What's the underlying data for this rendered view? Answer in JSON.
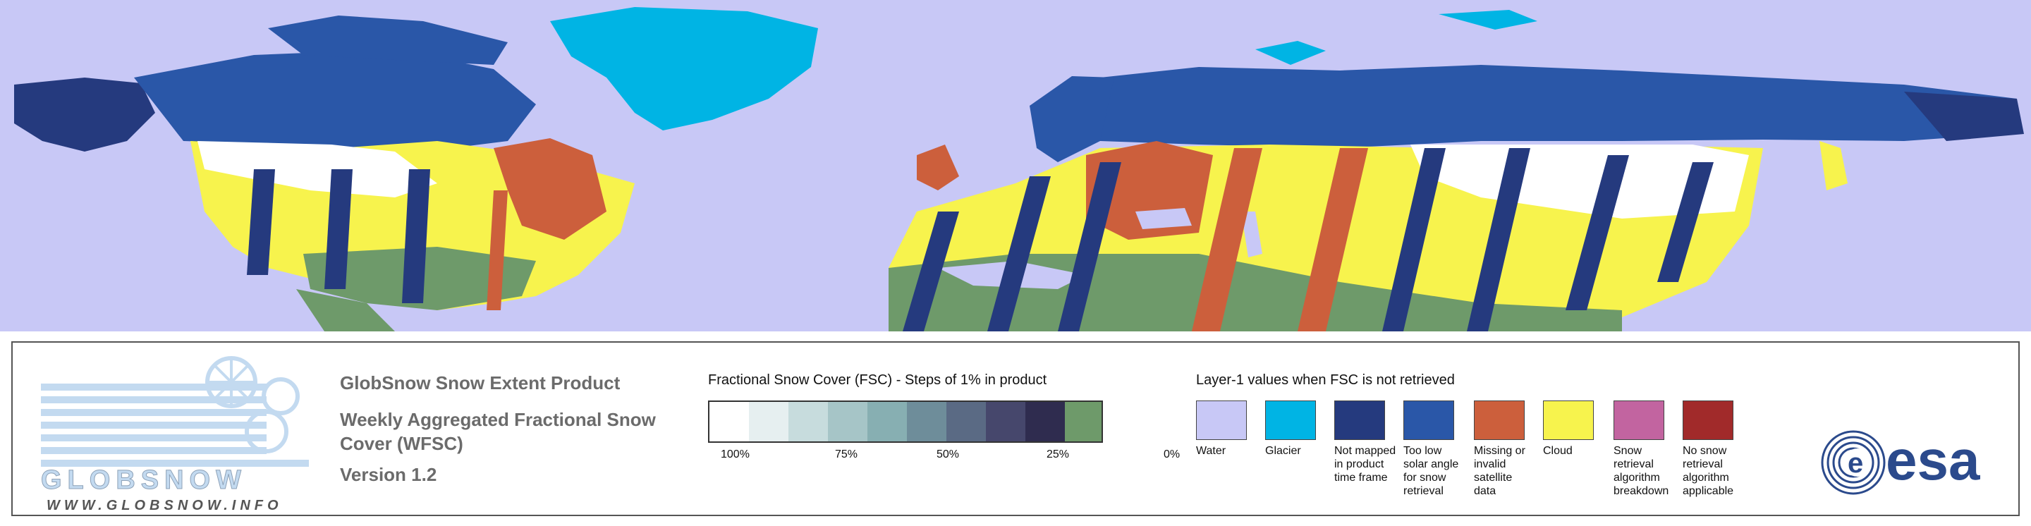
{
  "map": {
    "colors": {
      "water": "#c8c8f6",
      "glacier": "#00b4e4",
      "not_mapped": "#253a7e",
      "low_solar": "#2a57a8",
      "missing": "#cc5f3c",
      "cloud": "#f7f34d",
      "no_snow": "#6e9a6a",
      "snow": "#ffffff"
    }
  },
  "logo": {
    "brand_text": "GLOBSNOW",
    "url": "WWW.GLOBSNOW.INFO"
  },
  "product": {
    "title": "GlobSnow Snow Extent Product",
    "subtitle": "Weekly Aggregated Fractional Snow Cover (WFSC)",
    "version": "Version 1.2"
  },
  "fsc_legend": {
    "title": "Fractional Snow Cover (FSC) - Steps of 1% in product",
    "ticks": [
      "100%",
      "75%",
      "50%",
      "25%",
      "0%"
    ],
    "gradient_start": "#ffffff",
    "gradient_mid": "#86b0b4",
    "gradient_end": "#1a1830",
    "zero_color": "#6e9a6a"
  },
  "layer1_legend": {
    "title": "Layer-1 values when FSC is not retrieved",
    "items": [
      {
        "label": "Water",
        "color": "#c8c8f6"
      },
      {
        "label": "Glacier",
        "color": "#00b4e4"
      },
      {
        "label": "Not mapped in product time frame",
        "color": "#253a7e"
      },
      {
        "label": "Too low solar angle for snow retrieval",
        "color": "#2a57a8"
      },
      {
        "label": "Missing or invalid satellite data",
        "color": "#cc5f3c"
      },
      {
        "label": "Cloud",
        "color": "#f7f34d"
      },
      {
        "label": "Snow retrieval algorithm breakdown",
        "color": "#c264a0"
      },
      {
        "label": "No snow retrieval algorithm applicable",
        "color": "#a12a2a"
      }
    ]
  },
  "esa": {
    "text": "esa",
    "color": "#2b4a8c"
  }
}
